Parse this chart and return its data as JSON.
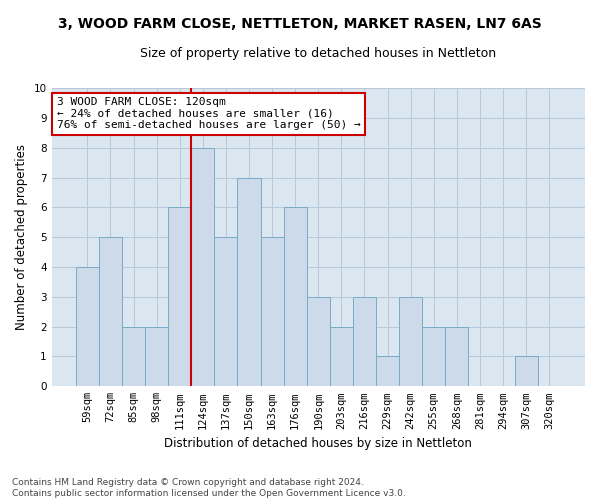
{
  "title": "3, WOOD FARM CLOSE, NETTLETON, MARKET RASEN, LN7 6AS",
  "subtitle": "Size of property relative to detached houses in Nettleton",
  "xlabel": "Distribution of detached houses by size in Nettleton",
  "ylabel": "Number of detached properties",
  "categories": [
    "59sqm",
    "72sqm",
    "85sqm",
    "98sqm",
    "111sqm",
    "124sqm",
    "137sqm",
    "150sqm",
    "163sqm",
    "176sqm",
    "190sqm",
    "203sqm",
    "216sqm",
    "229sqm",
    "242sqm",
    "255sqm",
    "268sqm",
    "281sqm",
    "294sqm",
    "307sqm",
    "320sqm"
  ],
  "values": [
    4,
    5,
    2,
    2,
    6,
    8,
    5,
    7,
    5,
    6,
    3,
    2,
    3,
    1,
    3,
    2,
    2,
    0,
    0,
    1,
    0
  ],
  "bar_color": "#ccdaea",
  "bar_edge_color": "#7aaac8",
  "vline_index": 4.5,
  "annotation_text": "3 WOOD FARM CLOSE: 120sqm\n← 24% of detached houses are smaller (16)\n76% of semi-detached houses are larger (50) →",
  "annotation_box_facecolor": "#ffffff",
  "annotation_box_edgecolor": "#cc0000",
  "vline_color": "#cc0000",
  "ylim": [
    0,
    10
  ],
  "yticks": [
    0,
    1,
    2,
    3,
    4,
    5,
    6,
    7,
    8,
    9,
    10
  ],
  "grid_color": "#b8c8d8",
  "plot_bg": "#dae6f0",
  "fig_bg": "#ffffff",
  "footnote": "Contains HM Land Registry data © Crown copyright and database right 2024.\nContains public sector information licensed under the Open Government Licence v3.0.",
  "title_fontsize": 10,
  "subtitle_fontsize": 9,
  "xlabel_fontsize": 8.5,
  "ylabel_fontsize": 8.5,
  "annotation_fontsize": 8,
  "tick_fontsize": 7.5
}
